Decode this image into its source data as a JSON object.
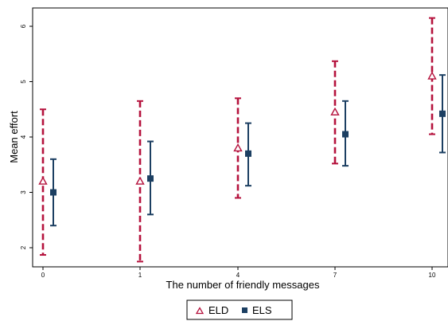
{
  "chart_data": {
    "type": "scatter",
    "title": "",
    "xlabel": "The number of friendly messages",
    "ylabel": "Mean effort",
    "x_ticks": [
      "0",
      "1",
      "4",
      "7",
      "10"
    ],
    "y_ticks": [
      "2",
      "3",
      "4",
      "5",
      "6"
    ],
    "ylim": [
      1.8,
      6.2
    ],
    "grid": false,
    "legend_position": "bottom-center",
    "series": [
      {
        "name": "ELD",
        "marker": "triangle-hollow",
        "error_style": "dashed",
        "color": "#b5123d",
        "points": [
          {
            "x": "0",
            "mean": 3.2,
            "low": 1.87,
            "high": 4.5
          },
          {
            "x": "1",
            "mean": 3.2,
            "low": 1.75,
            "high": 4.65
          },
          {
            "x": "4",
            "mean": 3.8,
            "low": 2.9,
            "high": 4.7
          },
          {
            "x": "7",
            "mean": 4.45,
            "low": 3.52,
            "high": 5.37
          },
          {
            "x": "10",
            "mean": 5.1,
            "low": 4.05,
            "high": 6.15
          }
        ]
      },
      {
        "name": "ELS",
        "marker": "square-filled",
        "error_style": "solid",
        "color": "#1c3f62",
        "points": [
          {
            "x": "0",
            "mean": 3.0,
            "low": 2.4,
            "high": 3.6
          },
          {
            "x": "1",
            "mean": 3.25,
            "low": 2.6,
            "high": 3.92
          },
          {
            "x": "4",
            "mean": 3.7,
            "low": 3.12,
            "high": 4.25
          },
          {
            "x": "7",
            "mean": 4.05,
            "low": 3.48,
            "high": 4.65
          },
          {
            "x": "10",
            "mean": 4.42,
            "low": 3.72,
            "high": 5.12
          }
        ]
      }
    ]
  }
}
